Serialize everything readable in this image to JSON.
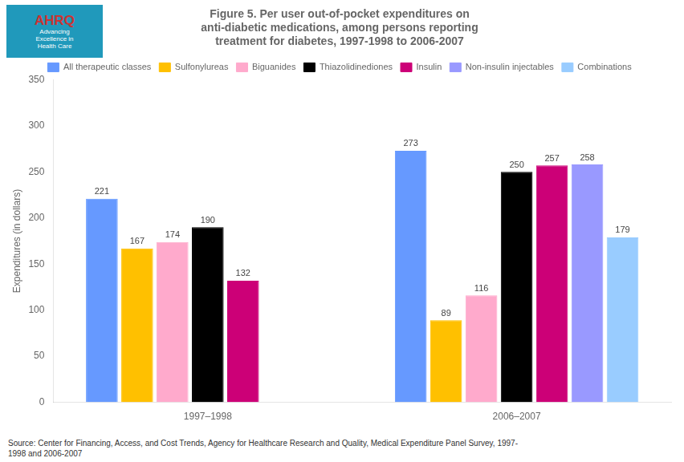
{
  "chart_data": {
    "type": "bar",
    "title": "Figure 5. Per user out-of-pocket expenditures on\nanti-diabetic medications, among persons reporting\ntreatment for diabetes, 1997-1998 to 2006-2007",
    "y_label": "Expenditures (in dollars)",
    "annotations": [
      "Source: Center for Financing, Access, and Cost Trends, Agency for Healthcare Research and Quality, Medical Expenditure Panel Survey, 1997-\n1998 and 2006-2007",
      "AHRQ",
      "Advancing\nExcellence in\nHealth Care"
    ],
    "categories": [
      "1997–1998",
      "2006–2007"
    ],
    "series": [
      {
        "name": "All therapeutic classes",
        "color": "#6699FF",
        "values": [
          221,
          273
        ]
      },
      {
        "name": "Sulfonylureas",
        "color": "#FFC000",
        "values": [
          167,
          89
        ]
      },
      {
        "name": "Biguanides",
        "color": "#FFAACC",
        "values": [
          174,
          116
        ]
      },
      {
        "name": "Thiazolidinediones",
        "color": "#000000",
        "values": [
          190,
          250
        ]
      },
      {
        "name": "Insulin",
        "color": "#CC0077",
        "values": [
          132,
          257
        ]
      },
      {
        "name": "Non-insulin injectables",
        "color": "#9999FF",
        "values": [
          null,
          258
        ]
      },
      {
        "name": "Combinations",
        "color": "#99CCFF",
        "values": [
          null,
          179
        ]
      }
    ],
    "ylim": [
      0,
      350
    ],
    "yticks": [
      0,
      50,
      100,
      150,
      200,
      250,
      300,
      350
    ],
    "grid": false,
    "legend": "top",
    "data_labels": true
  }
}
